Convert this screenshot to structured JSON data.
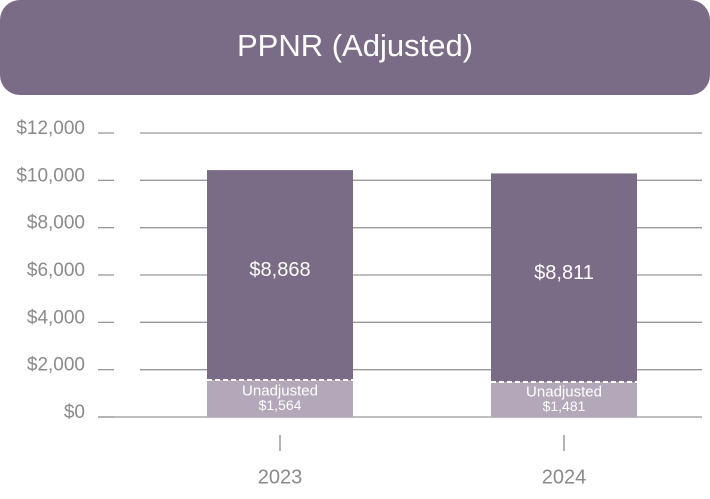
{
  "chart_data": {
    "type": "stacked_bar",
    "title": "PPNR (Adjusted)",
    "categories": [
      "2023",
      "2024"
    ],
    "series": [
      {
        "name": "Unadjusted",
        "color": "#b2a8ba",
        "values": [
          1564,
          1481
        ],
        "value_labels": [
          "$1,564",
          "$1,481"
        ]
      },
      {
        "color": "#7a6b86",
        "values": [
          8868,
          8811
        ],
        "value_labels": [
          "$8,868",
          "$8,811"
        ]
      }
    ],
    "ylim": [
      0,
      12000
    ],
    "yticks": [
      {
        "value": 0,
        "label": "$0"
      },
      {
        "value": 2000,
        "label": "$2,000"
      },
      {
        "value": 4000,
        "label": "$4,000"
      },
      {
        "value": 6000,
        "label": "$6,000"
      },
      {
        "value": 8000,
        "label": "$8,000"
      },
      {
        "value": 10000,
        "label": "$10,000"
      },
      {
        "value": 12000,
        "label": "$12,000"
      }
    ],
    "grid": true
  }
}
